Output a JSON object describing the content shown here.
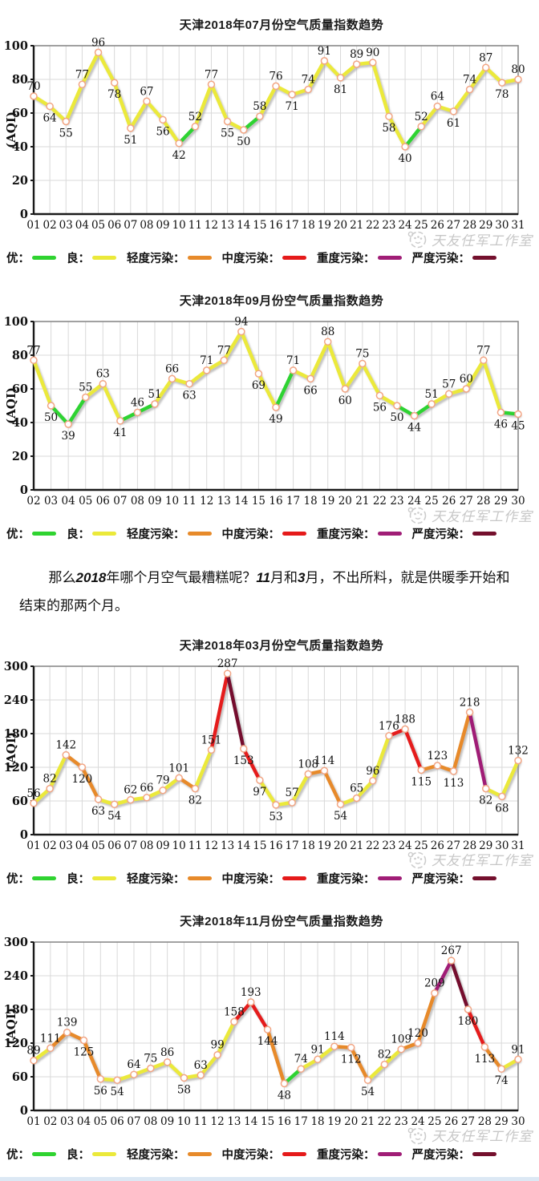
{
  "watermark": {
    "text": "天友任军工作室"
  },
  "legend": {
    "items": [
      {
        "label": "优：",
        "color": "#2fd330"
      },
      {
        "label": "良：",
        "color": "#ebe93a"
      },
      {
        "label": "轻度污染：",
        "color": "#e78a2a"
      },
      {
        "label": "中度污染：",
        "color": "#e51a1a"
      },
      {
        "label": "重度污染：",
        "color": "#a01d76"
      },
      {
        "label": "严度污染：",
        "color": "#74102d"
      }
    ]
  },
  "aqi_levels": [
    {
      "max": 50,
      "color": "#2fd330"
    },
    {
      "max": 100,
      "color": "#ebe93a"
    },
    {
      "max": 150,
      "color": "#e78a2a"
    },
    {
      "max": 200,
      "color": "#e51a1a"
    },
    {
      "max": 250,
      "color": "#a01d76"
    },
    {
      "max": 9999,
      "color": "#74102d"
    }
  ],
  "paragraph": {
    "segments": [
      {
        "text": "那么",
        "em": false
      },
      {
        "text": "2018",
        "em": true
      },
      {
        "text": "年哪个月空气最糟糕呢？",
        "em": false
      },
      {
        "text": "11",
        "em": true
      },
      {
        "text": "月和",
        "em": false
      },
      {
        "text": "3",
        "em": true
      },
      {
        "text": "月，不出所料，就是供暖季开始和结束的那两个月。",
        "em": false
      }
    ]
  },
  "chart_data": [
    {
      "type": "line",
      "title": "天津2018年07月份空气质量指数趋势",
      "xlabel": "",
      "ylabel": "(AQI)",
      "ylim": [
        0,
        100
      ],
      "yticks": [
        0,
        20,
        40,
        60,
        80,
        100
      ],
      "grid": true,
      "legend_position": "bottom",
      "categories": [
        "01",
        "02",
        "03",
        "04",
        "05",
        "06",
        "07",
        "08",
        "09",
        "10",
        "11",
        "12",
        "13",
        "14",
        "15",
        "16",
        "17",
        "18",
        "19",
        "20",
        "21",
        "22",
        "23",
        "24",
        "25",
        "26",
        "27",
        "28",
        "29",
        "30",
        "31"
      ],
      "values": [
        70,
        64,
        55,
        77,
        96,
        78,
        51,
        67,
        56,
        42,
        52,
        77,
        55,
        50,
        58,
        76,
        71,
        74,
        91,
        81,
        89,
        90,
        58,
        40,
        52,
        64,
        61,
        74,
        87,
        78,
        80
      ]
    },
    {
      "type": "line",
      "title": "天津2018年09月份空气质量指数趋势",
      "xlabel": "",
      "ylabel": "(AQI)",
      "ylim": [
        0,
        100
      ],
      "yticks": [
        0,
        20,
        40,
        60,
        80,
        100
      ],
      "grid": true,
      "legend_position": "bottom",
      "categories": [
        "02",
        "03",
        "04",
        "05",
        "06",
        "07",
        "08",
        "09",
        "10",
        "11",
        "12",
        "13",
        "14",
        "15",
        "16",
        "17",
        "18",
        "19",
        "20",
        "21",
        "22",
        "23",
        "24",
        "25",
        "26",
        "27",
        "28",
        "29",
        "30"
      ],
      "values": [
        77,
        50,
        39,
        55,
        63,
        41,
        46,
        51,
        66,
        63,
        71,
        77,
        94,
        69,
        49,
        71,
        66,
        88,
        60,
        75,
        56,
        50,
        44,
        51,
        57,
        60,
        77,
        46,
        45
      ]
    },
    {
      "type": "line",
      "title": "天津2018年03月份空气质量指数趋势",
      "xlabel": "",
      "ylabel": "(AQI)",
      "ylim": [
        0,
        300
      ],
      "yticks": [
        0,
        60,
        120,
        180,
        240,
        300
      ],
      "grid": true,
      "legend_position": "bottom",
      "categories": [
        "01",
        "02",
        "03",
        "04",
        "05",
        "06",
        "07",
        "08",
        "09",
        "10",
        "11",
        "12",
        "13",
        "14",
        "15",
        "16",
        "17",
        "18",
        "19",
        "20",
        "21",
        "22",
        "23",
        "24",
        "25",
        "26",
        "27",
        "28",
        "29",
        "30",
        "31"
      ],
      "values": [
        56,
        82,
        142,
        120,
        63,
        54,
        62,
        66,
        79,
        101,
        82,
        151,
        287,
        153,
        97,
        53,
        57,
        108,
        114,
        54,
        65,
        96,
        176,
        188,
        115,
        123,
        113,
        218,
        82,
        68,
        132
      ]
    },
    {
      "type": "line",
      "title": "天津2018年11月份空气质量指数趋势",
      "xlabel": "",
      "ylabel": "(AQI)",
      "ylim": [
        0,
        300
      ],
      "yticks": [
        0,
        60,
        120,
        180,
        240,
        300
      ],
      "grid": true,
      "legend_position": "bottom",
      "categories": [
        "01",
        "02",
        "03",
        "04",
        "05",
        "06",
        "07",
        "08",
        "09",
        "10",
        "11",
        "12",
        "13",
        "14",
        "15",
        "16",
        "17",
        "18",
        "19",
        "20",
        "21",
        "22",
        "23",
        "24",
        "25",
        "26",
        "27",
        "28",
        "29",
        "30"
      ],
      "values": [
        89,
        111,
        139,
        125,
        56,
        54,
        64,
        75,
        86,
        58,
        63,
        99,
        158,
        193,
        144,
        48,
        74,
        91,
        114,
        112,
        54,
        82,
        109,
        120,
        209,
        267,
        180,
        113,
        74,
        91
      ]
    }
  ]
}
